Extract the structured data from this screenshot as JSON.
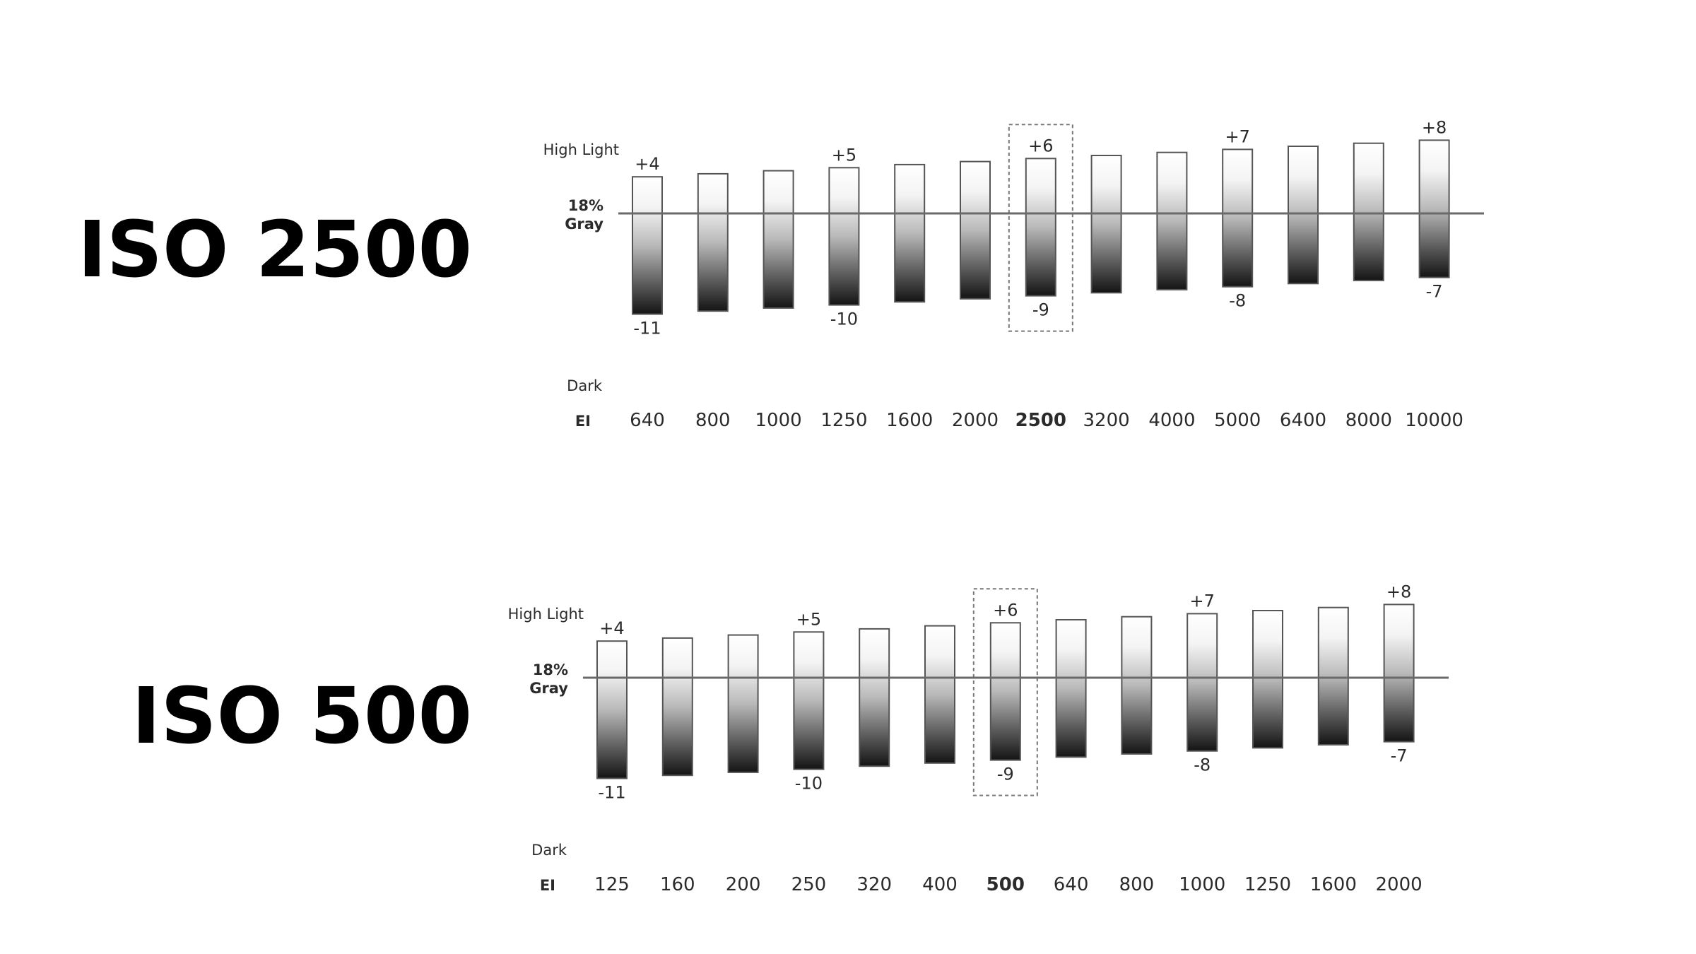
{
  "chart_data": [
    {
      "type": "bar",
      "title": "ISO 2500",
      "labels": {
        "highlight": "High Light",
        "gray_line1": "18%",
        "gray_line2": "Gray",
        "dark": "Dark",
        "ei": "EI"
      },
      "categories": [
        "640",
        "800",
        "1000",
        "1250",
        "1600",
        "2000",
        "2500",
        "3200",
        "4000",
        "5000",
        "6400",
        "8000",
        "10000"
      ],
      "series": [
        {
          "values_top": [
            4,
            4.3333,
            4.6667,
            5,
            5.3333,
            5.6667,
            6,
            6.3333,
            6.6667,
            7,
            7.3333,
            7.6667,
            8
          ]
        },
        {
          "values_bottom": [
            -11,
            -10.6667,
            -10.3333,
            -10,
            -9.6667,
            -9.3333,
            -9,
            -8.6667,
            -8.3333,
            -8,
            -7.6667,
            -7.3333,
            -7
          ]
        }
      ],
      "top_labels": [
        "+4",
        "",
        "",
        "+5",
        "",
        "",
        "+6",
        "",
        "",
        "+7",
        "",
        "",
        "+8"
      ],
      "bottom_labels": [
        "-11",
        "",
        "",
        "-10",
        "",
        "",
        "-9",
        "",
        "",
        "-8",
        "",
        "",
        "-7"
      ],
      "highlight_index": 6,
      "ylim": [
        -11,
        8
      ]
    },
    {
      "type": "bar",
      "title": "ISO 500",
      "labels": {
        "highlight": "High Light",
        "gray_line1": "18%",
        "gray_line2": "Gray",
        "dark": "Dark",
        "ei": "EI"
      },
      "categories": [
        "125",
        "160",
        "200",
        "250",
        "320",
        "400",
        "500",
        "640",
        "800",
        "1000",
        "1250",
        "1600",
        "2000"
      ],
      "series": [
        {
          "values_top": [
            4,
            4.3333,
            4.6667,
            5,
            5.3333,
            5.6667,
            6,
            6.3333,
            6.6667,
            7,
            7.3333,
            7.6667,
            8
          ]
        },
        {
          "values_bottom": [
            -11,
            -10.6667,
            -10.3333,
            -10,
            -9.6667,
            -9.3333,
            -9,
            -8.6667,
            -8.3333,
            -8,
            -7.6667,
            -7.3333,
            -7
          ]
        }
      ],
      "top_labels": [
        "+4",
        "",
        "",
        "+5",
        "",
        "",
        "+6",
        "",
        "",
        "+7",
        "",
        "",
        "+8"
      ],
      "bottom_labels": [
        "-11",
        "",
        "",
        "-10",
        "",
        "",
        "-9",
        "",
        "",
        "-8",
        "",
        "",
        "-7"
      ],
      "highlight_index": 6,
      "ylim": [
        -11,
        8
      ]
    }
  ]
}
